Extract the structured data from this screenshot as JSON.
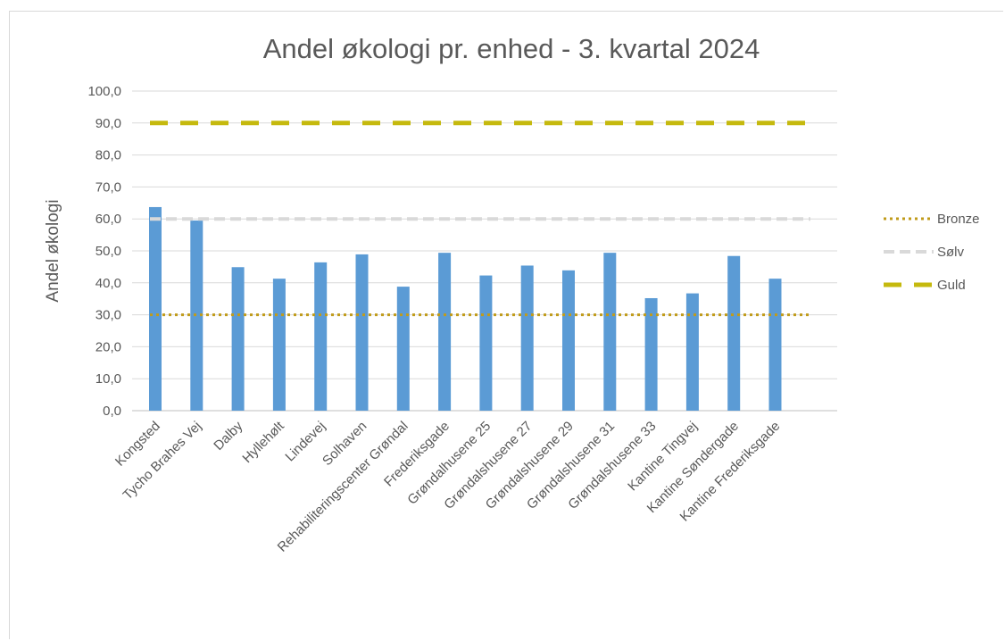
{
  "chart_data": {
    "type": "bar",
    "title": "Andel økologi pr. enhed - 3. kvartal 2024",
    "ylabel": "Andel økologi",
    "xlabel": "",
    "ylim": [
      0,
      100
    ],
    "yticks": [
      "0,0",
      "10,0",
      "20,0",
      "30,0",
      "40,0",
      "50,0",
      "60,0",
      "70,0",
      "80,0",
      "90,0",
      "100,0"
    ],
    "grid": true,
    "legend_position": "right",
    "categories": [
      "Kongsted",
      "Tycho Brahes Vej",
      "Dalby",
      "Hyllehølt",
      "Lindevej",
      "Solhaven",
      "Rehabiliteringscenter Grøndal",
      "Frederiksgade",
      "Grøndalhusene 25",
      "Grøndalshusene 27",
      "Grøndalshusene 29",
      "Grøndalshusene 31",
      "Grøndalshusene 33",
      "Kantine Tingvej",
      "Kantine Søndergade",
      "Kantine Frederiksgade"
    ],
    "values": [
      63.7,
      59.5,
      44.9,
      41.3,
      46.4,
      48.9,
      38.8,
      49.4,
      42.3,
      45.4,
      43.9,
      49.4,
      35.2,
      36.7,
      48.4,
      41.3
    ],
    "bar_color": "#5b9bd5",
    "reference_lines": [
      {
        "name": "Bronze",
        "value": 30,
        "color": "#c09b1a",
        "style": "dotted"
      },
      {
        "name": "Sølv",
        "value": 60,
        "color": "#d9d9d9",
        "style": "dashed"
      },
      {
        "name": "Guld",
        "value": 90,
        "color": "#c5b90e",
        "style": "long-dashed"
      }
    ]
  }
}
